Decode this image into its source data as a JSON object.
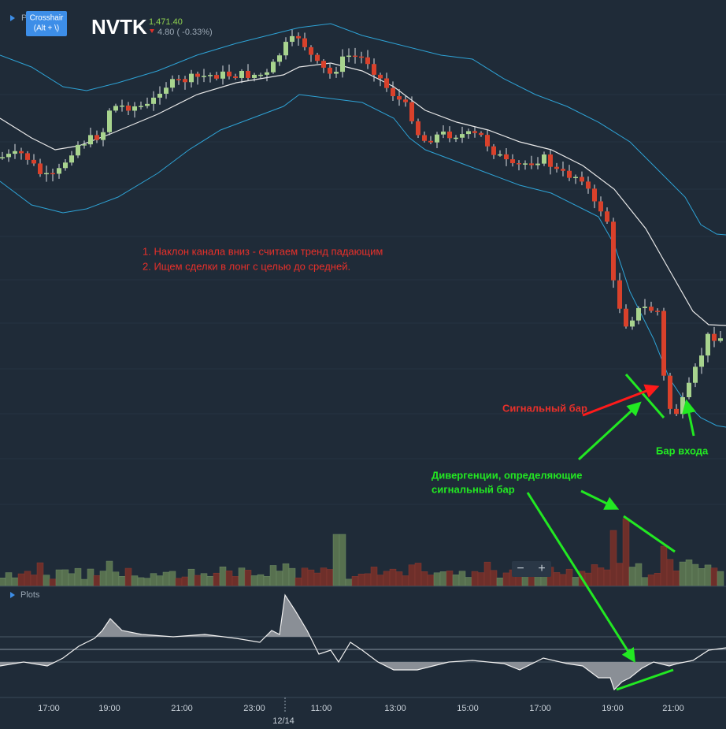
{
  "header": {
    "pane_label": "P",
    "tooltip": [
      "Crosshair",
      "(Alt + \\)"
    ],
    "ticker": "NVTK",
    "price": "1,471.40",
    "change": "4.80 ( -0.33%)"
  },
  "annotations": {
    "notes": [
      "1. Наклон канала вниз - считаем тренд падающим",
      "2. Ищем сделки в лонг с целью до средней."
    ],
    "signal_bar": "Сигнальный бар",
    "entry_bar": "Бар входа",
    "divergence": [
      "Дивергенции, определяющие",
      "сигнальный бар"
    ]
  },
  "zoom": [
    "−",
    "+"
  ],
  "plots_label": "Plots",
  "time_axis": [
    "17:00",
    "19:00",
    "21:00",
    "23:00",
    "11:00",
    "13:00",
    "15:00",
    "17:00",
    "19:00",
    "21:00"
  ],
  "date_label": "12/14"
}
